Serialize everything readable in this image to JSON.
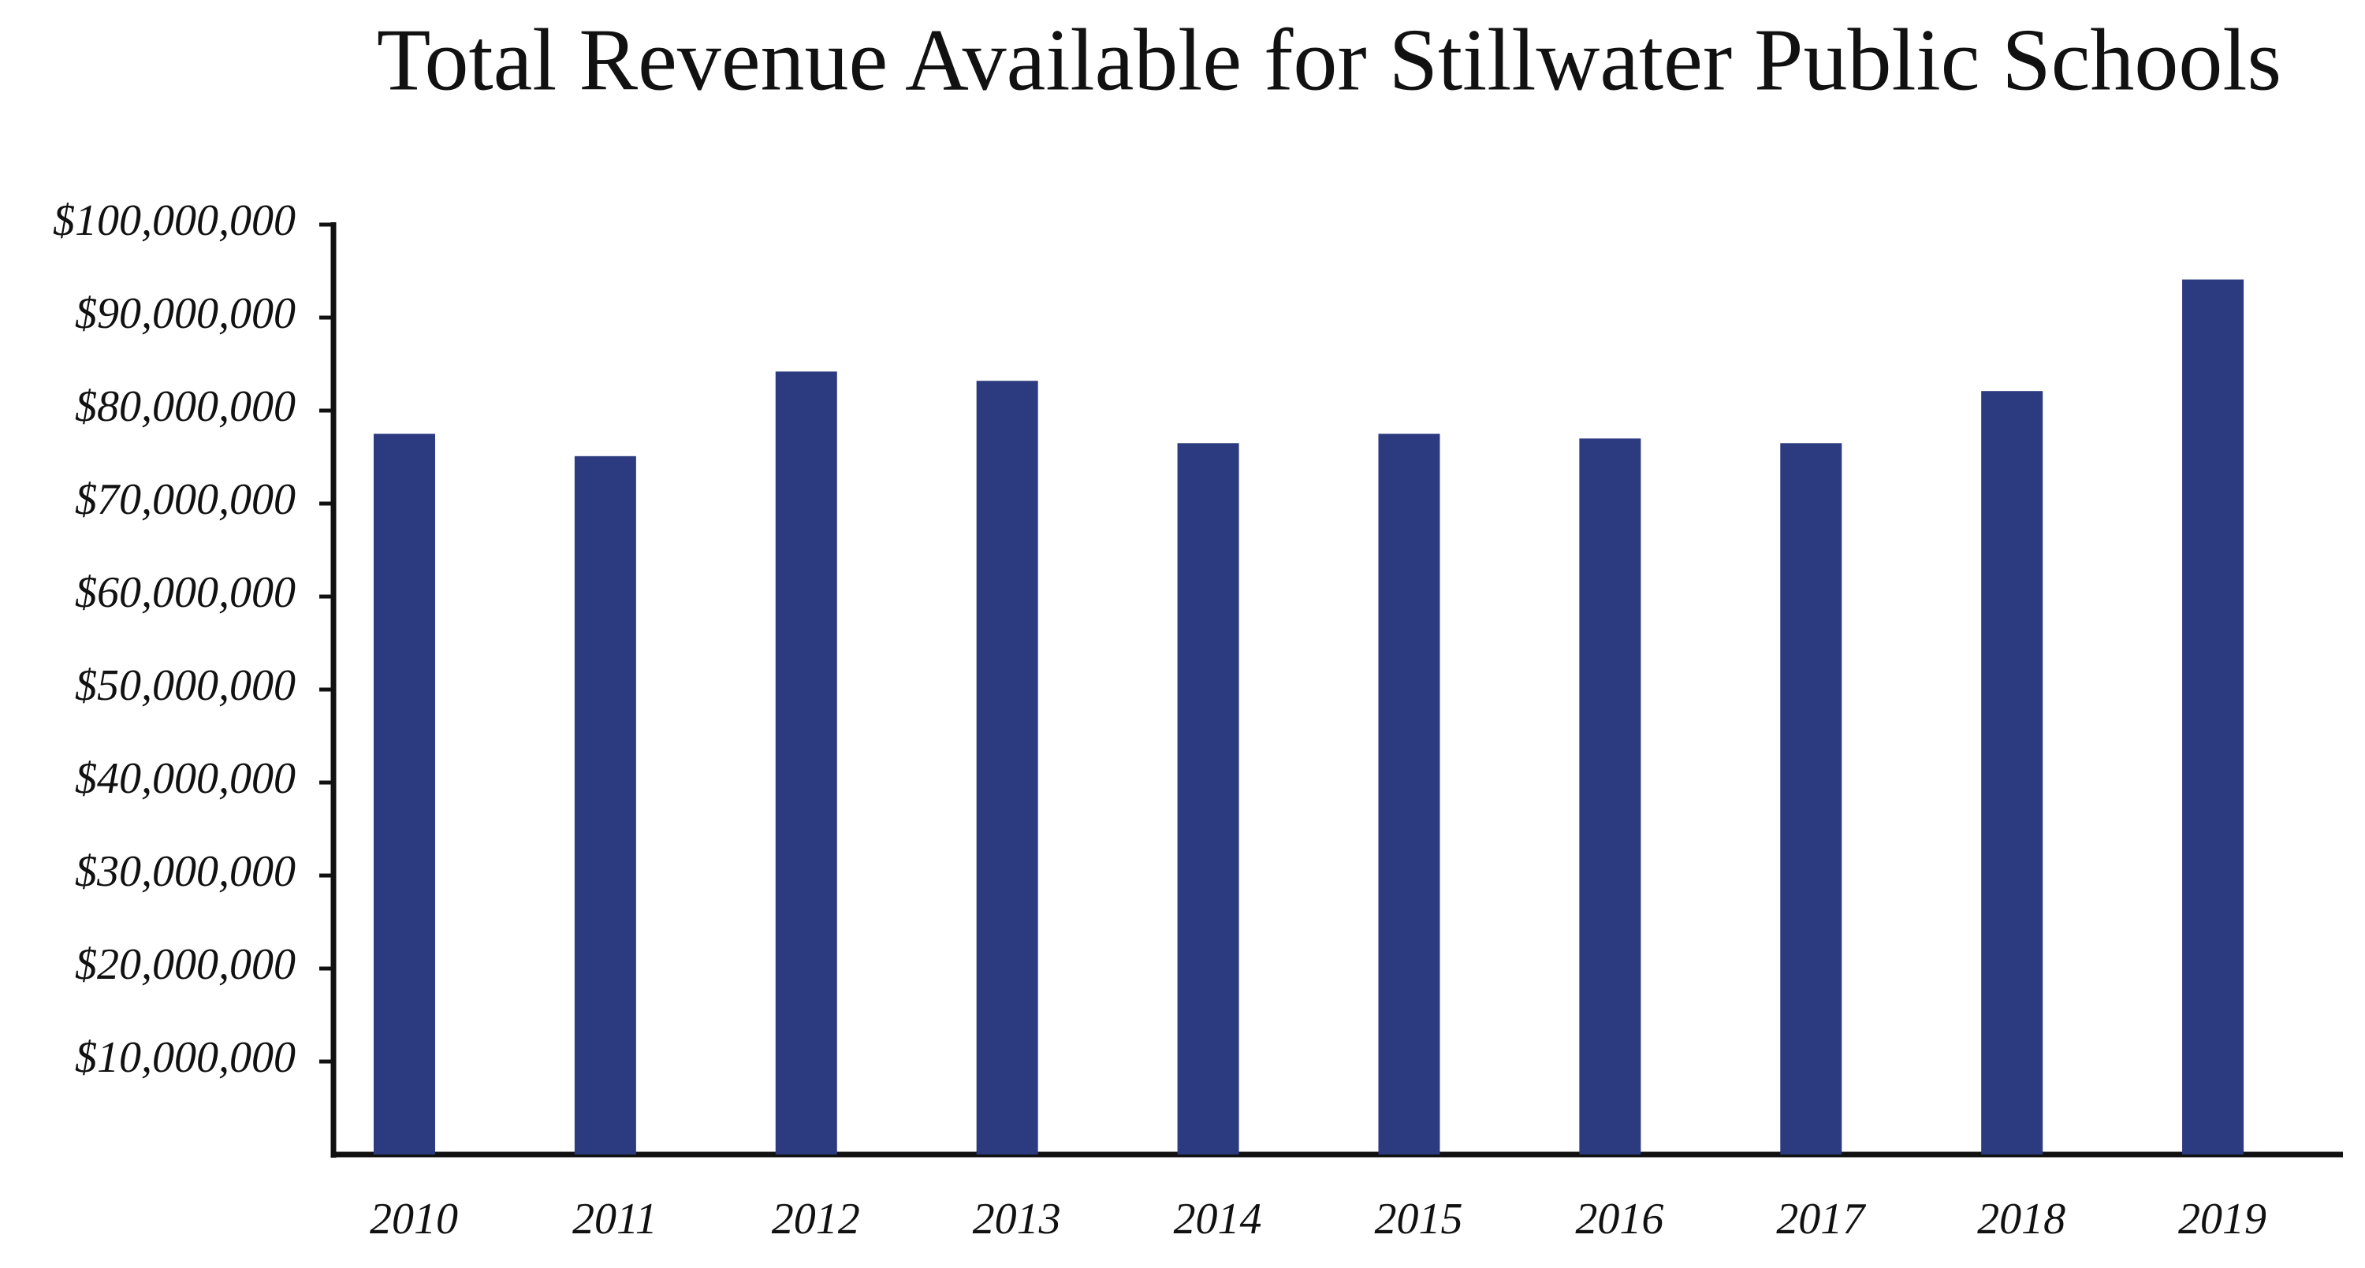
{
  "chart_data": {
    "type": "bar",
    "title": "Total Revenue Available for Stillwater Public Schools",
    "categories": [
      "2010",
      "2011",
      "2012",
      "2013",
      "2014",
      "2015",
      "2016",
      "2017",
      "2018",
      "2019"
    ],
    "values": [
      77500000,
      75100000,
      84200000,
      83200000,
      76500000,
      77500000,
      77000000,
      76500000,
      82100000,
      94100000
    ],
    "color": "#2c3a80",
    "ylim": [
      0,
      100000000
    ],
    "yticks": [
      {
        "value": 10000000,
        "label": "$10,000,000"
      },
      {
        "value": 20000000,
        "label": "$20,000,000"
      },
      {
        "value": 30000000,
        "label": "$30,000,000"
      },
      {
        "value": 40000000,
        "label": "$40,000,000"
      },
      {
        "value": 50000000,
        "label": "$50,000,000"
      },
      {
        "value": 60000000,
        "label": "$60,000,000"
      },
      {
        "value": 70000000,
        "label": "$70,000,000"
      },
      {
        "value": 80000000,
        "label": "$80,000,000"
      },
      {
        "value": 90000000,
        "label": "$90,000,000"
      },
      {
        "value": 100000000,
        "label": "$100,000,000"
      }
    ],
    "grid": false
  }
}
